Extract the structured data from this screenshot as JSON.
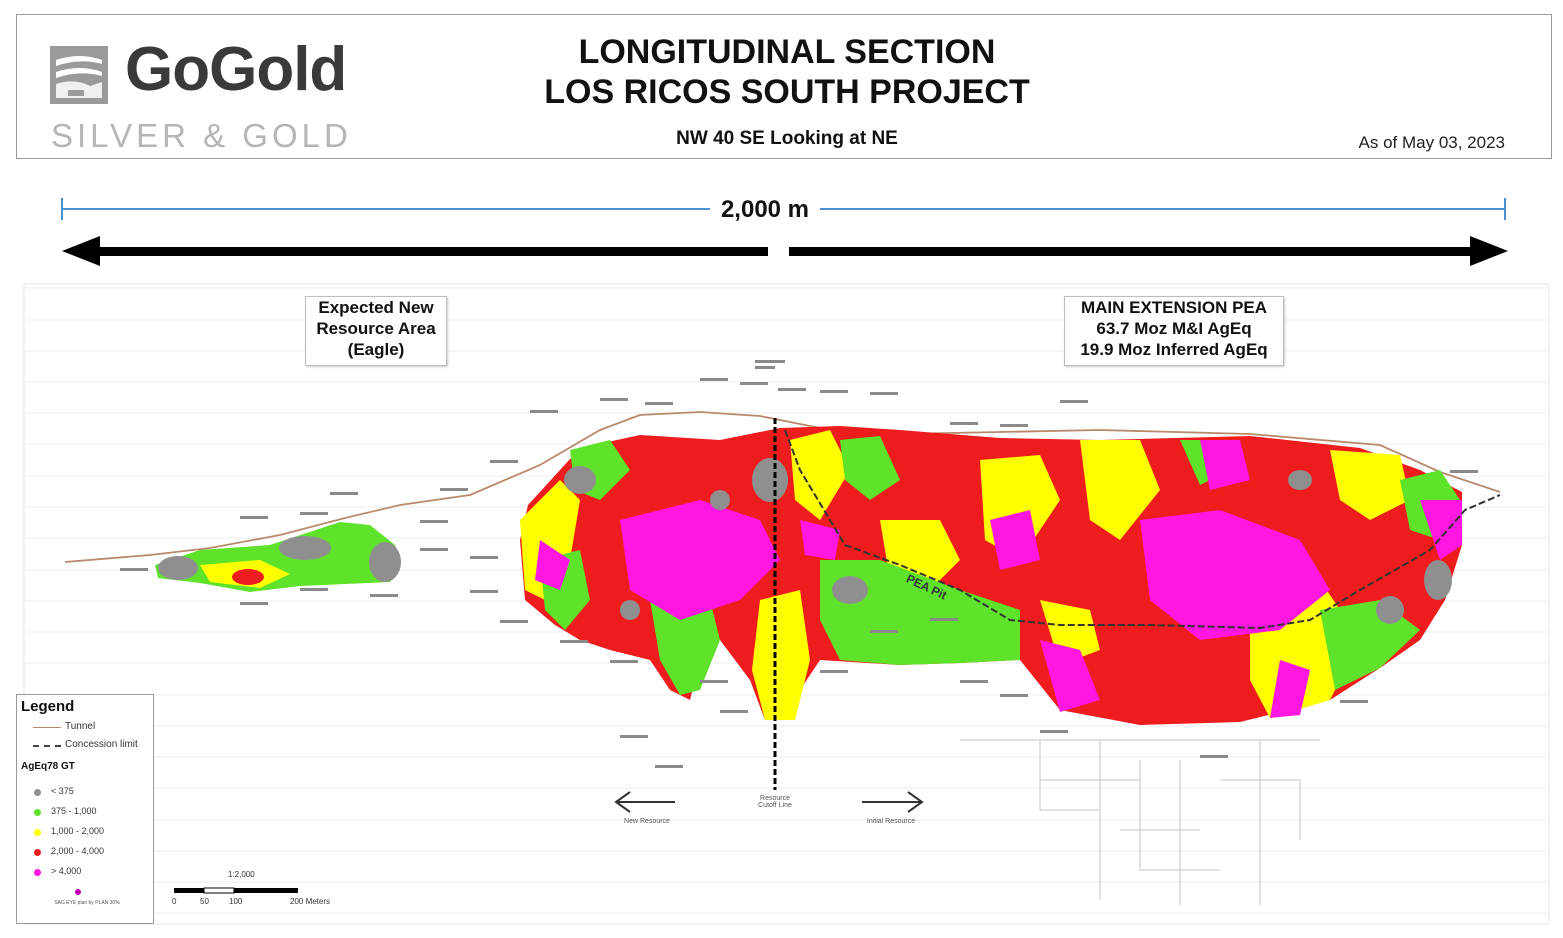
{
  "header": {
    "logo_name": "GoGold",
    "logo_tagline": "SILVER & GOLD",
    "title_line1": "LONGITUDINAL SECTION",
    "title_line2": "LOS RICOS SOUTH PROJECT",
    "subtitle": "NW 40 SE Looking at NE",
    "date": "As of May 03, 2023"
  },
  "scale": {
    "label": "2,000 m"
  },
  "annotations": {
    "eagle_box": [
      "Expected New",
      "Resource Area",
      "(Eagle)"
    ],
    "pea_box": [
      "MAIN EXTENSION PEA",
      "63.7 Moz M&I AgEq",
      "19.9 Moz Inferred AgEq"
    ],
    "pea_pit": "PEA Pit",
    "cutoff_line": [
      "Resource",
      "Cutoff Line"
    ],
    "new_resource": "New Resource",
    "initial_resource": "Initial Resource"
  },
  "legend": {
    "title": "Legend",
    "lines": [
      {
        "label": "Tunnel",
        "style": "solid",
        "color": "#b9896a"
      },
      {
        "label": "Concession limit",
        "style": "dashed",
        "color": "#444444"
      }
    ],
    "grade_header": "AgEq78 GT",
    "grades": [
      {
        "label": "< 375",
        "color": "#8f8f8f"
      },
      {
        "label": "375 - 1,000",
        "color": "#5ee22a"
      },
      {
        "label": "1,000 - 2,000",
        "color": "#ffff00"
      },
      {
        "label": "2,000 - 4,000",
        "color": "#ee1c1c"
      },
      {
        "label": "> 4,000",
        "color": "#ff16e0"
      }
    ],
    "note": "SAG EYE plan by PLAN 30%",
    "scale_ratio": "1:2,000",
    "scale_ticks": [
      "0",
      "50",
      "100",
      "200 Meters"
    ]
  },
  "colors": {
    "gray": "#8f8f8f",
    "green": "#5ee22a",
    "yellow": "#ffff00",
    "red": "#ee1c1c",
    "magenta": "#ff16e0",
    "scale_blue": "#4a90d0",
    "tunnel": "#b9896a"
  }
}
